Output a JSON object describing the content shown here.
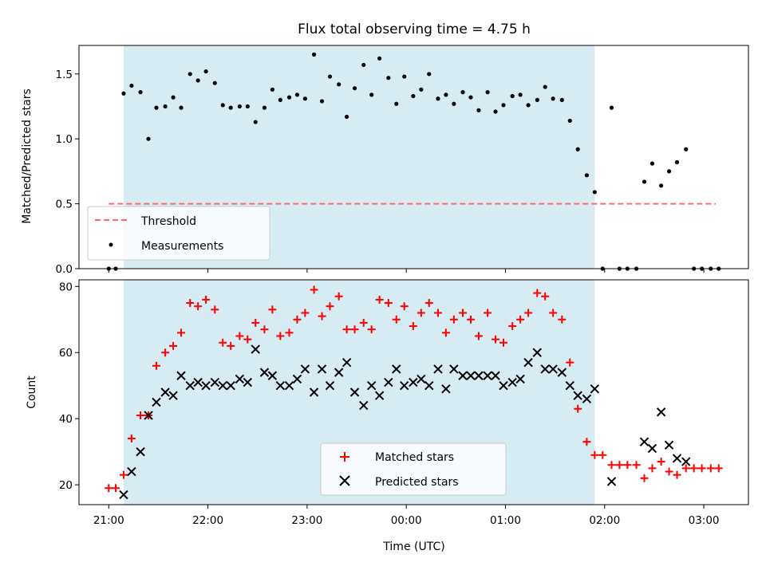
{
  "chart_data": [
    {
      "type": "scatter",
      "title": "Flux total observing time = 4.75 h",
      "xlabel": "",
      "ylabel": "Matched/Predicted stars",
      "ylim": [
        0,
        1.72
      ],
      "yticks": [
        "0.0",
        "0.5",
        "1.0",
        "1.5"
      ],
      "ytick_values": [
        0,
        0.5,
        1.0,
        1.5
      ],
      "shaded_interval_hours": [
        21.15,
        25.9
      ],
      "shaded_color": "#add8e6",
      "threshold": {
        "name": "Threshold",
        "value": 0.5,
        "x_range": [
          21.0,
          27.12
        ],
        "color": "#ff6b6b"
      },
      "legend": {
        "placement": "lower-left",
        "entries": [
          "Threshold",
          "Measurements"
        ]
      },
      "series": [
        {
          "name": "Measurements",
          "color": "#000000",
          "x": [
            21.0,
            21.07,
            21.15,
            21.23,
            21.32,
            21.4,
            21.48,
            21.57,
            21.65,
            21.73,
            21.82,
            21.9,
            21.98,
            22.07,
            22.15,
            22.23,
            22.32,
            22.4,
            22.48,
            22.57,
            22.65,
            22.73,
            22.82,
            22.9,
            22.98,
            23.07,
            23.15,
            23.23,
            23.32,
            23.4,
            23.48,
            23.57,
            23.65,
            23.73,
            23.82,
            23.9,
            23.98,
            24.07,
            24.15,
            24.23,
            24.32,
            24.4,
            24.48,
            24.57,
            24.65,
            24.73,
            24.82,
            24.9,
            24.98,
            25.07,
            25.15,
            25.23,
            25.32,
            25.4,
            25.48,
            25.57,
            25.65,
            25.73,
            25.82,
            25.9,
            25.98,
            26.07,
            26.15,
            26.23,
            26.32,
            26.4,
            26.48,
            26.57,
            26.65,
            26.73,
            26.82,
            26.9,
            26.98,
            27.07,
            27.15
          ],
          "y": [
            0.0,
            0.0,
            1.35,
            1.41,
            1.36,
            1.0,
            1.24,
            1.25,
            1.32,
            1.24,
            1.5,
            1.45,
            1.52,
            1.43,
            1.26,
            1.24,
            1.25,
            1.25,
            1.13,
            1.24,
            1.38,
            1.3,
            1.32,
            1.34,
            1.31,
            1.65,
            1.29,
            1.48,
            1.42,
            1.17,
            1.39,
            1.57,
            1.34,
            1.62,
            1.47,
            1.27,
            1.48,
            1.33,
            1.38,
            1.5,
            1.31,
            1.34,
            1.27,
            1.36,
            1.32,
            1.22,
            1.36,
            1.21,
            1.26,
            1.33,
            1.34,
            1.26,
            1.3,
            1.4,
            1.31,
            1.3,
            1.14,
            0.92,
            0.72,
            0.59,
            0.0,
            1.24,
            0.0,
            0.0,
            0.0,
            0.67,
            0.81,
            0.64,
            0.75,
            0.82,
            0.92,
            0.0,
            0.0,
            0.0,
            0.0
          ]
        }
      ]
    },
    {
      "type": "scatter",
      "title": "",
      "xlabel": "Time (UTC)",
      "ylabel": "Count",
      "ylim": [
        14,
        82
      ],
      "yticks": [
        "20",
        "40",
        "60",
        "80"
      ],
      "ytick_values": [
        20,
        40,
        60,
        80
      ],
      "xlim_hours": [
        20.7,
        27.45
      ],
      "xticks": [
        "21:00",
        "22:00",
        "23:00",
        "00:00",
        "01:00",
        "02:00",
        "03:00"
      ],
      "xtick_values": [
        21,
        22,
        23,
        24,
        25,
        26,
        27
      ],
      "shaded_interval_hours": [
        21.15,
        25.9
      ],
      "legend": {
        "placement": "lower-center",
        "entries": [
          "Matched stars",
          "Predicted stars"
        ]
      },
      "series": [
        {
          "name": "Matched stars",
          "marker": "plus",
          "color": "#ff0000",
          "x": [
            21.0,
            21.07,
            21.15,
            21.23,
            21.32,
            21.4,
            21.48,
            21.57,
            21.65,
            21.73,
            21.82,
            21.9,
            21.98,
            22.07,
            22.15,
            22.23,
            22.32,
            22.4,
            22.48,
            22.57,
            22.65,
            22.73,
            22.82,
            22.9,
            22.98,
            23.07,
            23.15,
            23.23,
            23.32,
            23.4,
            23.48,
            23.57,
            23.65,
            23.73,
            23.82,
            23.9,
            23.98,
            24.07,
            24.15,
            24.23,
            24.32,
            24.4,
            24.48,
            24.57,
            24.65,
            24.73,
            24.82,
            24.9,
            24.98,
            25.07,
            25.15,
            25.23,
            25.32,
            25.4,
            25.48,
            25.57,
            25.65,
            25.73,
            25.82,
            25.9,
            25.98,
            26.07,
            26.15,
            26.23,
            26.32,
            26.4,
            26.48,
            26.57,
            26.65,
            26.73,
            26.82,
            26.9,
            26.98,
            27.07,
            27.15
          ],
          "y": [
            19,
            19,
            23,
            34,
            41,
            41,
            56,
            60,
            62,
            66,
            75,
            74,
            76,
            73,
            63,
            62,
            65,
            64,
            69,
            67,
            73,
            65,
            66,
            70,
            72,
            79,
            71,
            74,
            77,
            67,
            67,
            69,
            67,
            76,
            75,
            70,
            74,
            68,
            72,
            75,
            72,
            66,
            70,
            72,
            70,
            65,
            72,
            64,
            63,
            68,
            70,
            72,
            78,
            77,
            72,
            70,
            57,
            43,
            33,
            29,
            29,
            26,
            26,
            26,
            26,
            22,
            25,
            27,
            24,
            23,
            25,
            25,
            25,
            25,
            25
          ]
        },
        {
          "name": "Predicted stars",
          "marker": "x",
          "color": "#000000",
          "x": [
            21.15,
            21.23,
            21.32,
            21.4,
            21.48,
            21.57,
            21.65,
            21.73,
            21.82,
            21.9,
            21.98,
            22.07,
            22.15,
            22.23,
            22.32,
            22.4,
            22.48,
            22.57,
            22.65,
            22.73,
            22.82,
            22.9,
            22.98,
            23.07,
            23.15,
            23.23,
            23.32,
            23.4,
            23.48,
            23.57,
            23.65,
            23.73,
            23.82,
            23.9,
            23.98,
            24.07,
            24.15,
            24.23,
            24.32,
            24.4,
            24.48,
            24.57,
            24.65,
            24.73,
            24.82,
            24.9,
            24.98,
            25.07,
            25.15,
            25.23,
            25.32,
            25.4,
            25.48,
            25.57,
            25.65,
            25.73,
            25.82,
            25.9,
            26.07,
            26.4,
            26.48,
            26.57,
            26.65,
            26.73,
            26.82
          ],
          "y": [
            17,
            24,
            30,
            41,
            45,
            48,
            47,
            53,
            50,
            51,
            50,
            51,
            50,
            50,
            52,
            51,
            61,
            54,
            53,
            50,
            50,
            52,
            55,
            48,
            55,
            50,
            54,
            57,
            48,
            44,
            50,
            47,
            51,
            55,
            50,
            51,
            52,
            50,
            55,
            49,
            55,
            53,
            53,
            53,
            53,
            53,
            50,
            51,
            52,
            57,
            60,
            55,
            55,
            54,
            50,
            47,
            46,
            49,
            21,
            33,
            31,
            42,
            32,
            28,
            27
          ]
        }
      ]
    }
  ]
}
